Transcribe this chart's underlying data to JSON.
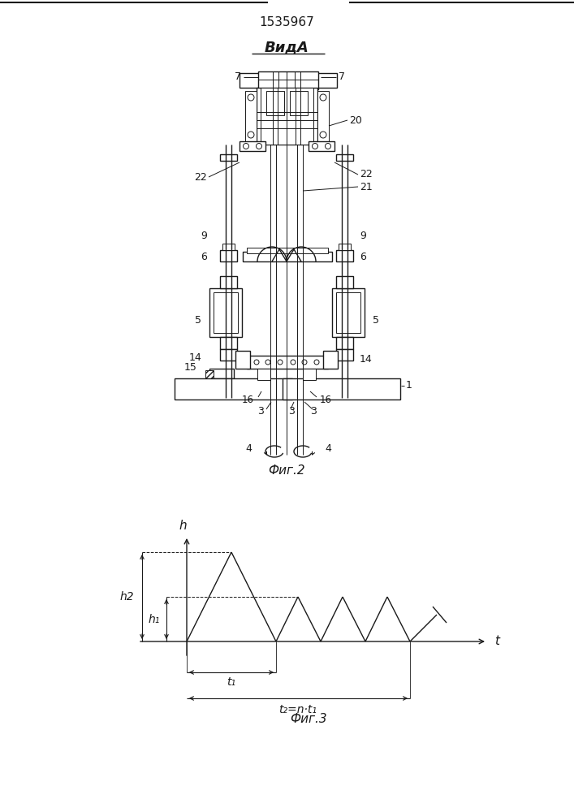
{
  "title": "1535967",
  "view_label": "ВидА",
  "fig2_label": "Фиг.2",
  "fig3_label": "Фиг.3",
  "bg_color": "#ffffff",
  "lc": "#1a1a1a",
  "h_label": "h",
  "t_label": "t",
  "h2_label": "h2",
  "h1_label": "h₁",
  "t1_label": "t₁",
  "t2_label": "t₂=n·t₁"
}
